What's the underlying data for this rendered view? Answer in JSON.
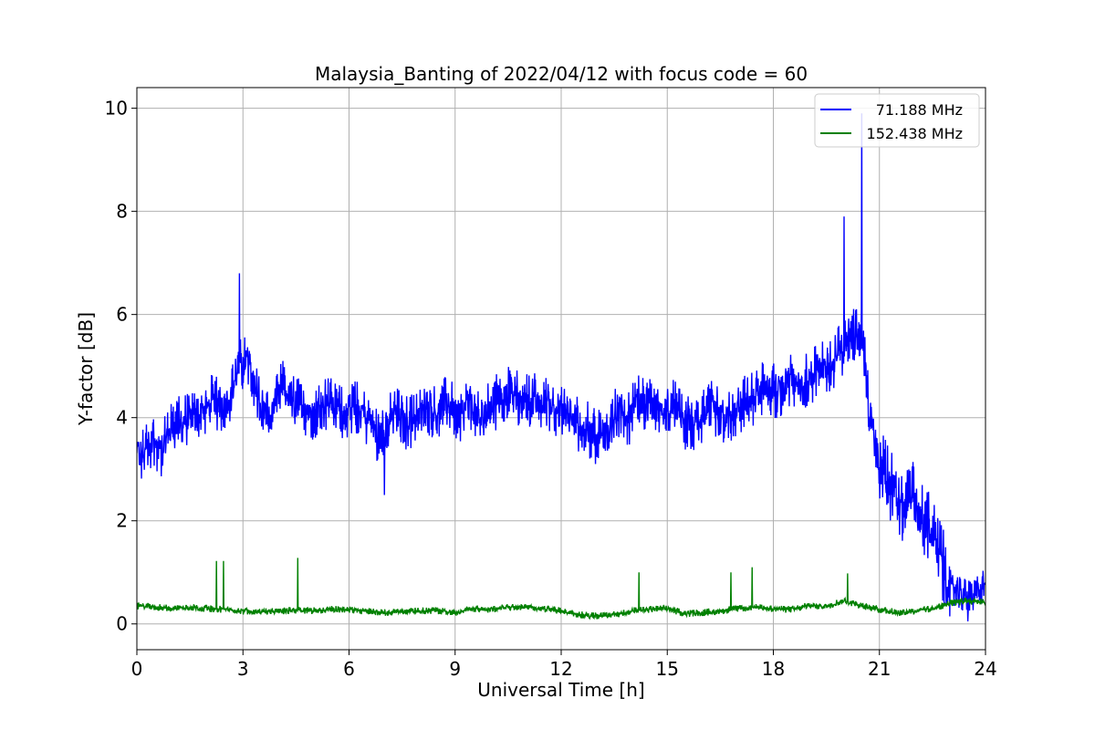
{
  "chart_data": {
    "type": "line",
    "title": "Malaysia_Banting of 2022/04/12 with focus code = 60",
    "xlabel": "Universal Time [h]",
    "ylabel": "Y-factor [dB]",
    "xlim": [
      0,
      24
    ],
    "ylim": [
      -0.5,
      10.4
    ],
    "xticks": [
      0,
      3,
      6,
      9,
      12,
      15,
      18,
      21,
      24
    ],
    "yticks": [
      0,
      2,
      4,
      6,
      8,
      10
    ],
    "grid": true,
    "legend_position": "top-right",
    "series": [
      {
        "name": "71.188 MHz",
        "color": "#0000ff",
        "x": [
          0.0,
          0.1,
          0.3,
          0.5,
          0.7,
          0.9,
          1.2,
          1.5,
          1.8,
          2.1,
          2.4,
          2.7,
          2.9,
          3.2,
          3.5,
          3.8,
          4.1,
          4.4,
          4.7,
          5.0,
          5.3,
          5.6,
          5.9,
          6.2,
          6.5,
          6.8,
          7.0,
          7.3,
          7.6,
          7.9,
          8.2,
          8.5,
          8.8,
          9.1,
          9.4,
          9.7,
          10.0,
          10.3,
          10.6,
          10.9,
          11.2,
          11.5,
          11.8,
          12.1,
          12.4,
          12.7,
          13.0,
          13.3,
          13.6,
          13.9,
          14.2,
          14.5,
          14.8,
          15.1,
          15.4,
          15.7,
          16.0,
          16.3,
          16.6,
          16.9,
          17.2,
          17.5,
          17.8,
          18.1,
          18.4,
          18.7,
          19.0,
          19.3,
          19.6,
          19.9,
          20.2,
          20.5,
          20.7,
          20.9,
          21.1,
          21.3,
          21.5,
          21.7,
          21.9,
          22.1,
          22.3,
          22.5,
          22.7,
          22.9,
          23.1,
          23.3,
          23.5,
          23.7,
          23.9,
          24.0
        ],
        "y": [
          3.4,
          3.2,
          3.5,
          3.6,
          3.3,
          3.7,
          3.9,
          4.0,
          4.1,
          4.3,
          4.2,
          4.5,
          5.0,
          5.1,
          4.2,
          4.0,
          4.6,
          4.3,
          4.2,
          4.1,
          4.3,
          4.2,
          4.1,
          4.2,
          4.0,
          3.7,
          3.8,
          4.1,
          3.9,
          4.0,
          4.2,
          4.1,
          4.3,
          4.0,
          4.3,
          3.9,
          4.2,
          4.4,
          4.5,
          4.3,
          4.4,
          4.3,
          4.2,
          4.1,
          3.9,
          3.8,
          3.6,
          3.8,
          4.1,
          4.0,
          4.3,
          4.2,
          4.1,
          4.3,
          4.0,
          3.8,
          4.0,
          4.2,
          4.0,
          4.1,
          4.3,
          4.4,
          4.6,
          4.5,
          4.7,
          4.6,
          4.8,
          4.9,
          5.0,
          5.3,
          5.6,
          5.7,
          4.2,
          3.2,
          3.0,
          2.7,
          2.4,
          2.2,
          2.5,
          2.1,
          2.0,
          1.7,
          1.3,
          0.9,
          0.7,
          0.6,
          0.5,
          0.6,
          0.7,
          0.8
        ],
        "peaks": [
          {
            "x": 2.9,
            "y": 6.8
          },
          {
            "x": 20.5,
            "y": 9.9
          },
          {
            "x": 20.0,
            "y": 7.9
          },
          {
            "x": 7.0,
            "y": 2.5
          },
          {
            "x": 23.5,
            "y": 0.05
          }
        ]
      },
      {
        "name": "152.438 MHz",
        "color": "#008000",
        "x": [
          0.0,
          0.5,
          1.0,
          1.5,
          2.0,
          2.5,
          3.0,
          3.5,
          4.0,
          4.5,
          5.0,
          5.5,
          6.0,
          6.5,
          7.0,
          7.5,
          8.0,
          8.5,
          9.0,
          9.5,
          10.0,
          10.5,
          11.0,
          11.5,
          12.0,
          12.5,
          13.0,
          13.5,
          14.0,
          14.5,
          15.0,
          15.5,
          16.0,
          16.5,
          17.0,
          17.5,
          18.0,
          18.5,
          19.0,
          19.5,
          20.0,
          20.5,
          21.0,
          21.5,
          22.0,
          22.5,
          23.0,
          23.5,
          24.0
        ],
        "y": [
          0.35,
          0.33,
          0.3,
          0.32,
          0.3,
          0.28,
          0.25,
          0.25,
          0.24,
          0.27,
          0.26,
          0.28,
          0.28,
          0.25,
          0.22,
          0.24,
          0.25,
          0.26,
          0.22,
          0.3,
          0.28,
          0.33,
          0.32,
          0.3,
          0.25,
          0.18,
          0.15,
          0.18,
          0.25,
          0.28,
          0.3,
          0.2,
          0.22,
          0.25,
          0.3,
          0.32,
          0.3,
          0.28,
          0.35,
          0.35,
          0.45,
          0.35,
          0.28,
          0.22,
          0.25,
          0.3,
          0.4,
          0.45,
          0.42
        ],
        "peaks": [
          {
            "x": 2.25,
            "y": 1.22
          },
          {
            "x": 2.45,
            "y": 1.22
          },
          {
            "x": 4.55,
            "y": 1.28
          },
          {
            "x": 14.2,
            "y": 1.0
          },
          {
            "x": 16.8,
            "y": 1.0
          },
          {
            "x": 17.4,
            "y": 1.1
          },
          {
            "x": 20.1,
            "y": 0.98
          }
        ]
      }
    ]
  }
}
